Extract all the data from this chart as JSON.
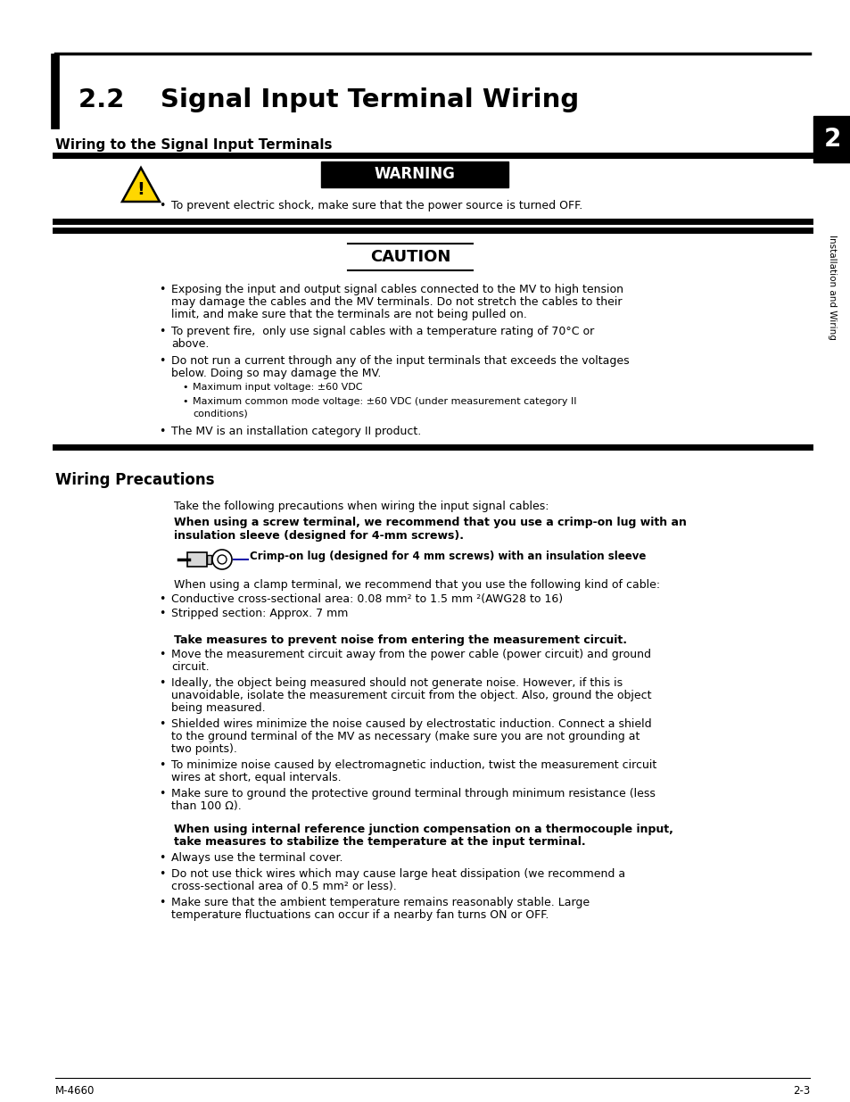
{
  "title": "2.2    Signal Input Terminal Wiring",
  "section1_heading": "Wiring to the Signal Input Terminals",
  "warning_text": "WARNING",
  "warning_bullet": "To prevent electric shock, make sure that the power source is turned OFF.",
  "caution_text": "CAUTION",
  "caution_bullets": [
    "Exposing the input and output signal cables connected to the MV to high tension\nmay damage the cables and the MV terminals. Do not stretch the cables to their\nlimit, and make sure that the terminals are not being pulled on.",
    "To prevent fire,  only use signal cables with a temperature rating of 70°C or\nabove.",
    "Do not run a current through any of the input terminals that exceeds the voltages\nbelow. Doing so may damage the MV.",
    "The MV is an installation category II product."
  ],
  "caution_sub_bullets": [
    "Maximum input voltage: ±60 VDC",
    "Maximum common mode voltage: ±60 VDC (under measurement category II\nconditions)"
  ],
  "section2_heading": "Wiring Precautions",
  "precautions_intro": "Take the following precautions when wiring the input signal cables:",
  "precautions_bold1": "When using a screw terminal, we recommend that you use a crimp-on lug with an\ninsulation sleeve (designed for 4-mm screws).",
  "crimp_label": "Crimp-on lug (designed for 4 mm screws) with an insulation sleeve",
  "clamp_intro": "When using a clamp terminal, we recommend that you use the following kind of cable:",
  "clamp_bullets": [
    "Conductive cross-sectional area: 0.08 mm² to 1.5 mm ²(AWG28 to 16)",
    "Stripped section: Approx. 7 mm"
  ],
  "noise_bold": "Take measures to prevent noise from entering the measurement circuit.",
  "noise_bullets": [
    "Move the measurement circuit away from the power cable (power circuit) and ground\ncircuit.",
    "Ideally, the object being measured should not generate noise. However, if this is\nunavoidable, isolate the measurement circuit from the object. Also, ground the object\nbeing measured.",
    "Shielded wires minimize the noise caused by electrostatic induction. Connect a shield\nto the ground terminal of the MV as necessary (make sure you are not grounding at\ntwo points).",
    "To minimize noise caused by electromagnetic induction, twist the measurement circuit\nwires at short, equal intervals.",
    "Make sure to ground the protective ground terminal through minimum resistance (less\nthan 100 Ω)."
  ],
  "thermocouple_bold": "When using internal reference junction compensation on a thermocouple input,\ntake measures to stabilize the temperature at the input terminal.",
  "thermocouple_bullets": [
    "Always use the terminal cover.",
    "Do not use thick wires which may cause large heat dissipation (we recommend a\ncross-sectional area of 0.5 mm² or less).",
    "Make sure that the ambient temperature remains reasonably stable. Large\ntemperature fluctuations can occur if a nearby fan turns ON or OFF."
  ],
  "footer_left": "M-4660",
  "footer_right": "2-3",
  "tab_label": "2",
  "tab_sublabel": "Installation and Wiring",
  "bg_color": "#ffffff",
  "text_color": "#000000",
  "warning_bg": "#000000",
  "warning_fg": "#ffffff",
  "tab_bg": "#000000",
  "tab_fg": "#ffffff"
}
